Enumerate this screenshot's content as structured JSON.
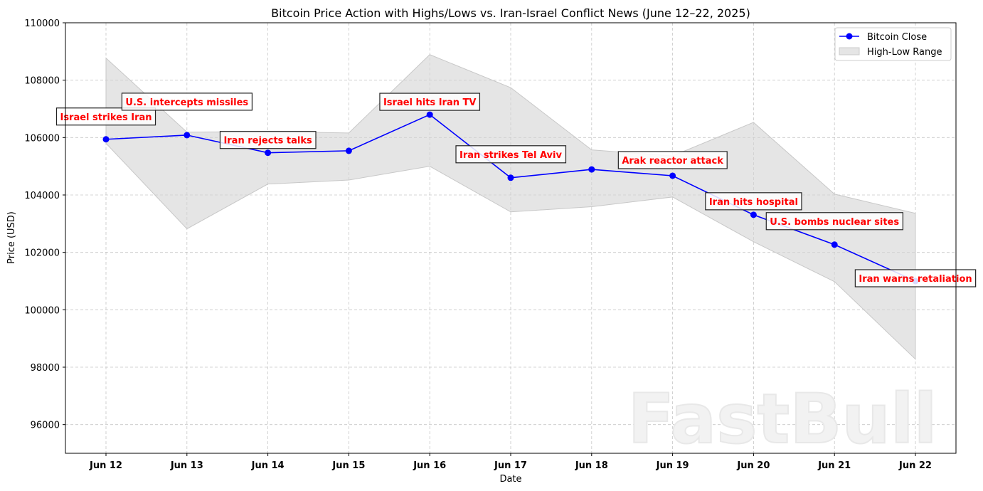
{
  "chart_data": {
    "type": "line",
    "title": "Bitcoin Price Action with Highs/Lows vs. Iran-Israel Conflict News (June 12–22, 2025)",
    "xlabel": "Date",
    "ylabel": "Price (USD)",
    "categories": [
      "Jun 12",
      "Jun 13",
      "Jun 14",
      "Jun 15",
      "Jun 16",
      "Jun 17",
      "Jun 18",
      "Jun 19",
      "Jun 20",
      "Jun 21",
      "Jun 22"
    ],
    "ylim": [
      95000,
      110000
    ],
    "yticks": [
      96000,
      98000,
      100000,
      102000,
      104000,
      106000,
      108000,
      110000
    ],
    "grid": true,
    "legend_position": "top-right",
    "series": [
      {
        "name": "Bitcoin Close",
        "type": "line",
        "color": "#0000ff",
        "values": [
          105940,
          106085,
          105470,
          105540,
          106800,
          104600,
          104890,
          104670,
          103310,
          102270,
          101000
        ]
      },
      {
        "name": "High-Low Range",
        "type": "area",
        "color": "#d3d3d3",
        "high": [
          108770,
          106190,
          106210,
          106160,
          108890,
          107740,
          105570,
          105360,
          106530,
          104030,
          103360
        ],
        "low": [
          105800,
          102820,
          104380,
          104520,
          105000,
          103410,
          103590,
          103930,
          102370,
          100980,
          98280
        ]
      }
    ],
    "annotations": [
      {
        "date": "Jun 12",
        "text": "Israel strikes Iran"
      },
      {
        "date": "Jun 13",
        "text": "U.S. intercepts missiles"
      },
      {
        "date": "Jun 14",
        "text": "Iran rejects talks"
      },
      {
        "date": "Jun 16",
        "text": "Israel hits Iran TV"
      },
      {
        "date": "Jun 17",
        "text": "Iran strikes Tel Aviv"
      },
      {
        "date": "Jun 19",
        "text": "Arak reactor attack"
      },
      {
        "date": "Jun 20",
        "text": "Iran hits hospital"
      },
      {
        "date": "Jun 21",
        "text": "U.S. bombs nuclear sites"
      },
      {
        "date": "Jun 22",
        "text": "Iran warns retaliation"
      }
    ],
    "annotation_color": "#ff0000"
  },
  "watermark": "FastBull"
}
